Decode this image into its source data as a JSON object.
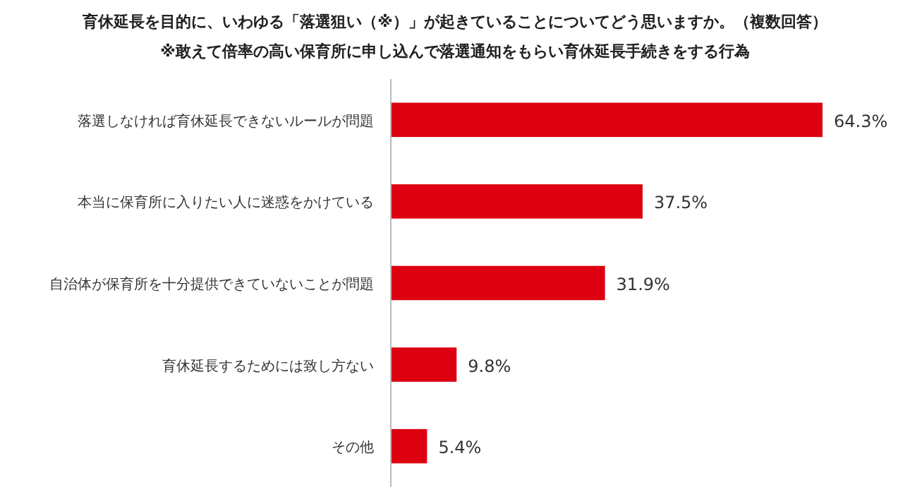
{
  "chart_data": {
    "type": "bar",
    "orientation": "horizontal",
    "title": "育休延長を目的に、いわゆる「落選狙い（※）」が起きていることについてどう思いますか。（複数回答）",
    "subtitle": "※敢えて倍率の高い保育所に申し込んで落選通知をもらい育休延長手続きをする行為",
    "categories": [
      "落選しなければ育休延長できないルールが問題",
      "本当に保育所に入りたい人に迷惑をかけている",
      "自治体が保育所を十分提供できていないことが問題",
      "育休延長するためには致し方ない",
      "その他"
    ],
    "values": [
      64.3,
      37.5,
      31.9,
      9.8,
      5.4
    ],
    "value_labels": [
      "64.3%",
      "37.5%",
      "31.9%",
      "9.8%",
      "5.4%"
    ],
    "color": "#dd0010"
  }
}
